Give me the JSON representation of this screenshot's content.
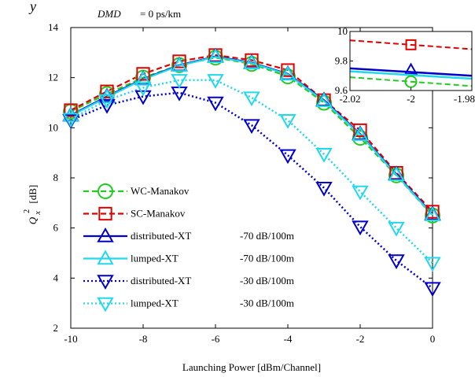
{
  "chart_data": {
    "type": "line",
    "header": {
      "prefix": "y",
      "label": "DMD",
      "value": "= 0 ps/km"
    },
    "xlabel": "Launching Power  [dBm/Channel]",
    "ylabel": {
      "main": "Q",
      "sup": "2",
      "sub": "x",
      "unit": "[dB]"
    },
    "xlim": [
      -10,
      0
    ],
    "ylim": [
      2,
      14
    ],
    "x_ticks": [
      "-10",
      "-8",
      "-6",
      "-4",
      "-2",
      "0"
    ],
    "y_ticks": [
      "2",
      "4",
      "6",
      "8",
      "10",
      "12",
      "14"
    ],
    "x": [
      -10,
      -9,
      -8,
      -7,
      -6,
      -5,
      -4,
      -3,
      -2,
      -1,
      0
    ],
    "series": [
      {
        "name": "WC-Manakov",
        "color": "#22cc22",
        "dash": "dashed",
        "marker": "circle",
        "values": [
          10.65,
          11.35,
          12.0,
          12.5,
          12.8,
          12.55,
          12.05,
          11.0,
          9.6,
          8.1,
          6.5
        ]
      },
      {
        "name": "SC-Manakov",
        "color": "#e00000",
        "dash": "dashed",
        "marker": "square",
        "values": [
          10.7,
          11.45,
          12.15,
          12.65,
          12.9,
          12.7,
          12.3,
          11.1,
          9.9,
          8.2,
          6.65
        ]
      },
      {
        "name": "distributed-XT",
        "extra": "-70 dB/100m",
        "color": "#0000cc",
        "dash": "solid",
        "marker": "triangle-up",
        "values": [
          10.5,
          11.25,
          11.95,
          12.5,
          12.85,
          12.6,
          12.15,
          11.1,
          9.75,
          8.15,
          6.55
        ]
      },
      {
        "name": "lumped-XT",
        "extra": "-70 dB/100m",
        "color": "#22d8ee",
        "dash": "solid",
        "marker": "triangle-up",
        "values": [
          10.48,
          11.22,
          11.93,
          12.48,
          12.83,
          12.58,
          12.13,
          11.07,
          9.72,
          8.12,
          6.52
        ]
      },
      {
        "name": "distributed-XT",
        "extra": "-30 dB/100m",
        "color": "#0000cc",
        "dash": "dotted",
        "marker": "triangle-down",
        "values": [
          10.3,
          10.9,
          11.25,
          11.4,
          11.0,
          10.1,
          8.9,
          7.6,
          6.05,
          4.7,
          3.6
        ]
      },
      {
        "name": "lumped-XT",
        "extra": "-30 dB/100m",
        "color": "#22d8ee",
        "dash": "dotted",
        "marker": "triangle-down",
        "values": [
          10.35,
          11.1,
          11.6,
          11.9,
          11.9,
          11.2,
          10.3,
          8.95,
          7.45,
          6.0,
          4.6
        ]
      }
    ],
    "inset": {
      "xlim": [
        -2.02,
        -1.98
      ],
      "ylim": [
        9.6,
        10.0
      ],
      "x_ticks": [
        "-2.02",
        "-2",
        "-1.98"
      ],
      "y_ticks": [
        "9.6",
        "9.8",
        "10"
      ],
      "lines": [
        {
          "series": "SC-Manakov",
          "y": [
            9.94,
            9.88
          ]
        },
        {
          "series": "distributed-XT -70",
          "y": [
            9.75,
            9.7
          ]
        },
        {
          "series": "lumped-XT -70",
          "y": [
            9.73,
            9.68
          ]
        },
        {
          "series": "WC-Manakov",
          "y": [
            9.69,
            9.63
          ]
        }
      ]
    }
  }
}
